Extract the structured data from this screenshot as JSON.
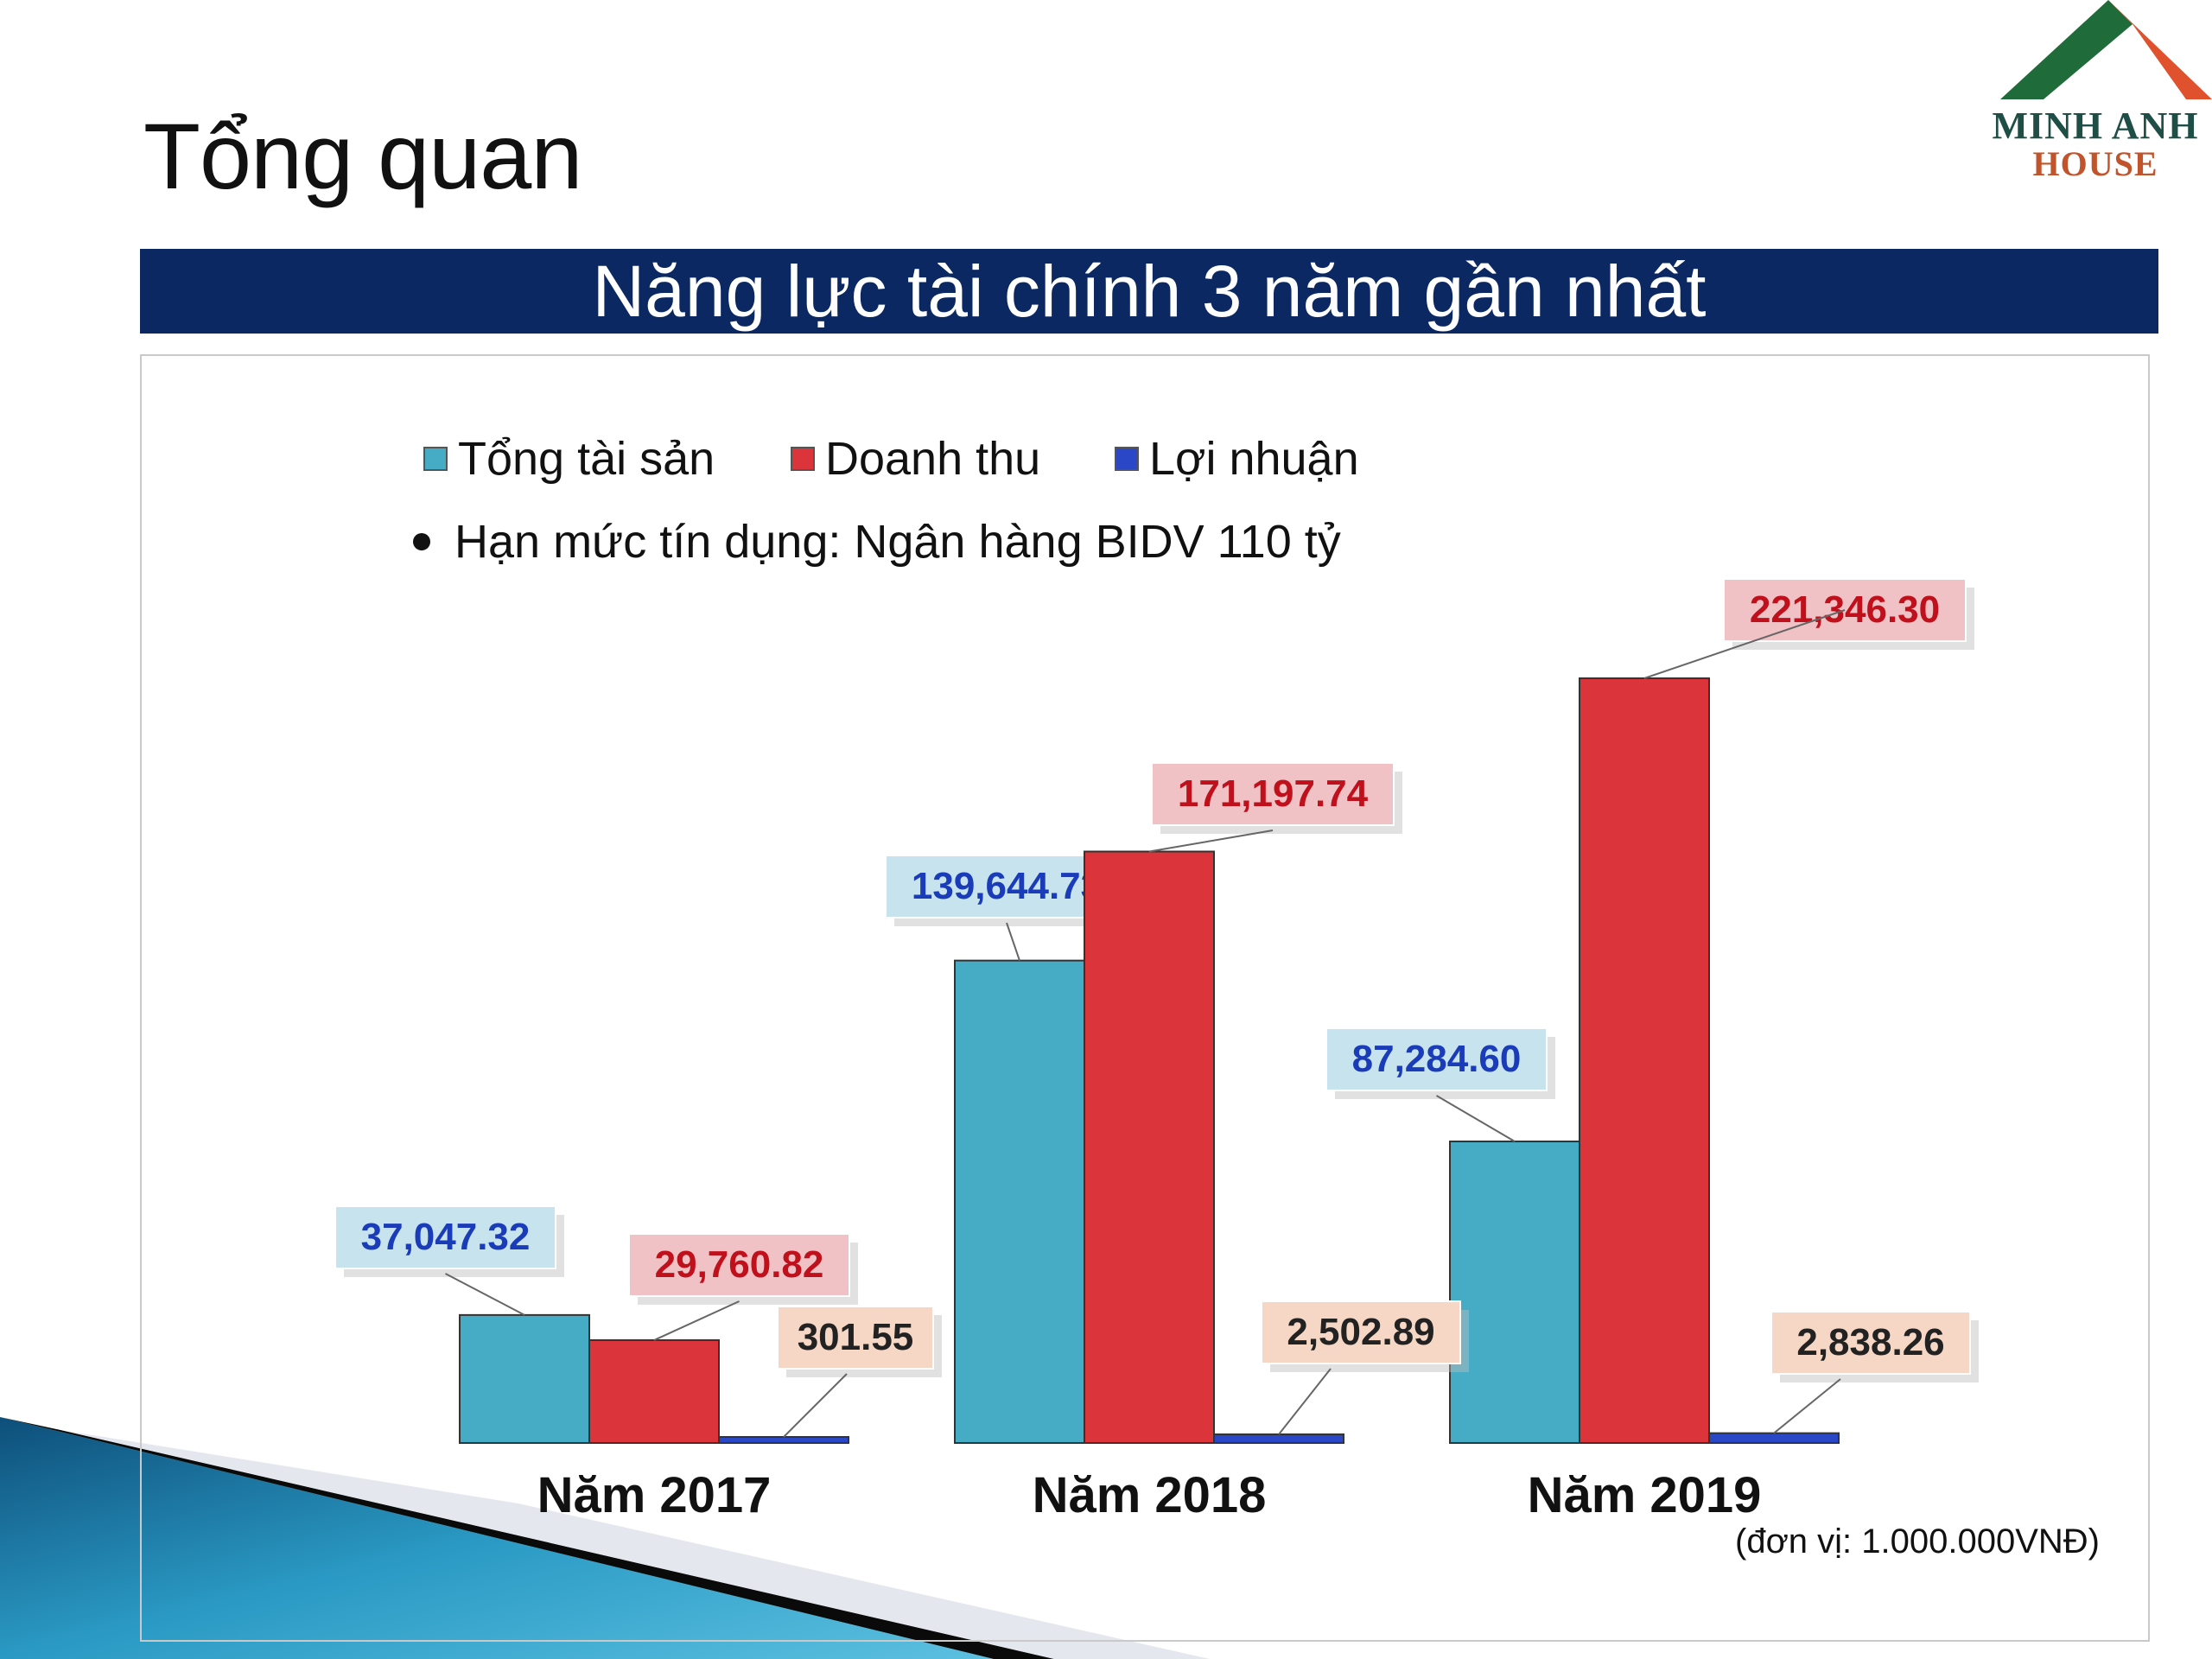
{
  "slide": {
    "title": "Tổng quan",
    "banner": "Năng lực tài chính 3 năm gần nhất",
    "logo_line1": "MINH ANH",
    "logo_line2": "HOUSE",
    "logo_colors": {
      "green": "#1f6b3a",
      "orange": "#e0522d"
    },
    "note": "Hạn mức tín dụng: Ngân hàng BIDV 110 tỷ",
    "unit": "(đơn vị: 1.000.000VNĐ)"
  },
  "chart_data": {
    "type": "bar",
    "title": "",
    "xlabel": "",
    "ylabel": "",
    "grid": false,
    "legend_position": "top-left",
    "categories": [
      "Năm 2017",
      "Năm 2018",
      "Năm 2019"
    ],
    "series": [
      {
        "name": "Tổng tài sản",
        "color": "#46abc5",
        "label_bg": "#c6e3ee",
        "label_color": "#1a3cb8",
        "values": [
          37047.32,
          139644.73,
          87284.6
        ],
        "labels": [
          "37,047.32",
          "139,644.73",
          "87,284.60"
        ]
      },
      {
        "name": "Doanh thu",
        "color": "#dc343b",
        "label_bg": "#f0c2c6",
        "label_color": "#c0101c",
        "values": [
          29760.82,
          171197.74,
          221346.3
        ],
        "labels": [
          "29,760.82",
          "171,197.74",
          "221,346.30"
        ]
      },
      {
        "name": "Lợi nhuận",
        "color": "#2a47c8",
        "label_bg": "#f6d6c4",
        "label_color": "#222222",
        "values": [
          301.55,
          2502.89,
          2838.26
        ],
        "labels": [
          "301.55",
          "2,502.89",
          "2,838.26"
        ]
      }
    ],
    "ylim": [
      0,
      221346.3
    ]
  }
}
